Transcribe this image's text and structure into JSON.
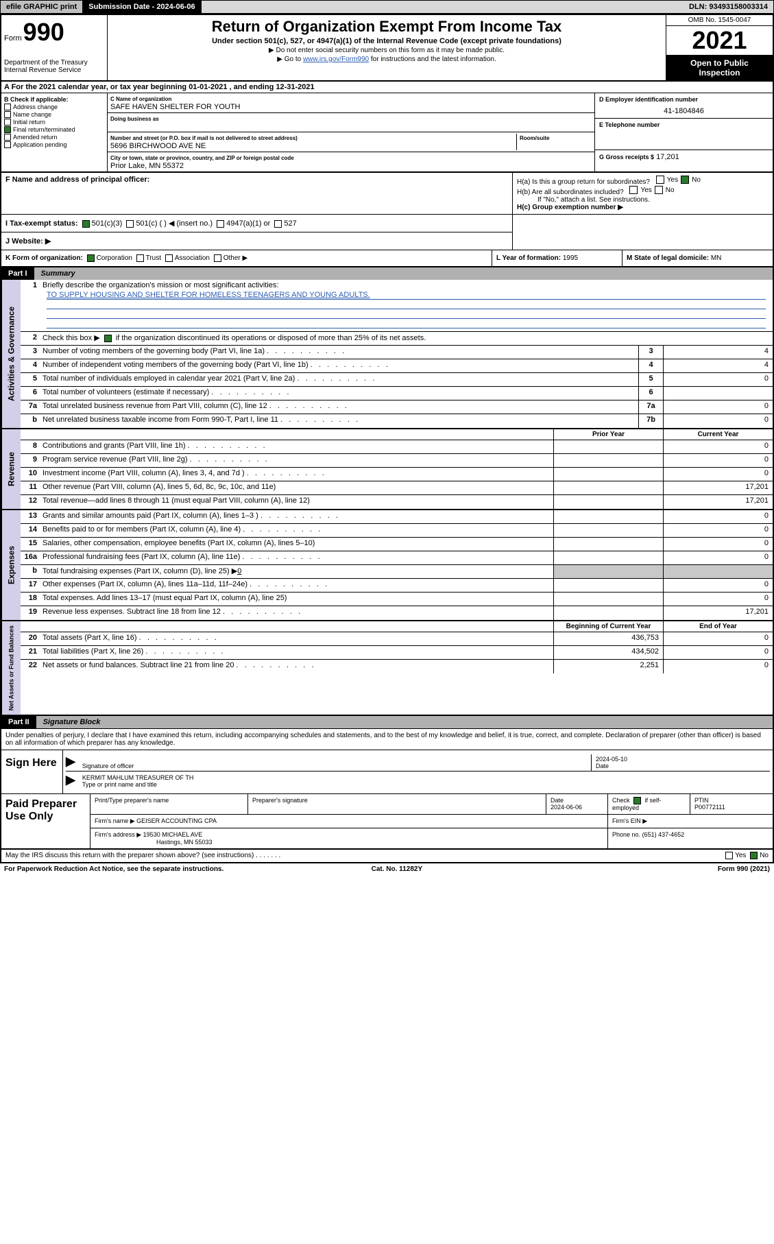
{
  "topbar": {
    "efile": "efile GRAPHIC print",
    "submission": "Submission Date - 2024-06-06",
    "dln": "DLN: 93493158003314"
  },
  "header": {
    "form_word": "Form",
    "form_num": "990",
    "dept": "Department of the Treasury\nInternal Revenue Service",
    "title": "Return of Organization Exempt From Income Tax",
    "subtitle": "Under section 501(c), 527, or 4947(a)(1) of the Internal Revenue Code (except private foundations)",
    "note1": "▶ Do not enter social security numbers on this form as it may be made public.",
    "note2_pre": "▶ Go to ",
    "note2_link": "www.irs.gov/Form990",
    "note2_post": " for instructions and the latest information.",
    "omb": "OMB No. 1545-0047",
    "year": "2021",
    "open": "Open to Public Inspection"
  },
  "line_a": "A For the 2021 calendar year, or tax year beginning 01-01-2021     , and ending 12-31-2021",
  "section_b": {
    "label": "B Check if applicable:",
    "items": [
      {
        "label": "Address change",
        "checked": false
      },
      {
        "label": "Name change",
        "checked": false
      },
      {
        "label": "Initial return",
        "checked": false
      },
      {
        "label": "Final return/terminated",
        "checked": true
      },
      {
        "label": "Amended return",
        "checked": false
      },
      {
        "label": "Application pending",
        "checked": false
      }
    ]
  },
  "section_c": {
    "name_label": "C Name of organization",
    "name": "SAFE HAVEN SHELTER FOR YOUTH",
    "dba_label": "Doing business as",
    "dba": "",
    "addr_label": "Number and street (or P.O. box if mail is not delivered to street address)",
    "room_label": "Room/suite",
    "addr": "5696 BIRCHWOOD AVE NE",
    "city_label": "City or town, state or province, country, and ZIP or foreign postal code",
    "city": "Prior Lake, MN   55372"
  },
  "section_d": {
    "label": "D Employer identification number",
    "val": "41-1804846"
  },
  "section_e": {
    "label": "E Telephone number",
    "val": ""
  },
  "section_g": {
    "label": "G Gross receipts $",
    "val": "17,201"
  },
  "section_f": {
    "label": "F  Name and address of principal officer:",
    "val": ""
  },
  "section_h": {
    "ha": "H(a)  Is this a group return for subordinates?",
    "hb": "H(b)  Are all subordinates included?",
    "hb_note": "If \"No,\" attach a list. See instructions.",
    "hc": "H(c)  Group exemption number ▶",
    "yes": "Yes",
    "no": "No"
  },
  "section_i": {
    "label": "I    Tax-exempt status:",
    "opts": [
      "501(c)(3)",
      "501(c) (  ) ◀ (insert no.)",
      "4947(a)(1) or",
      "527"
    ],
    "checked_idx": 0
  },
  "section_j": {
    "label": "J    Website: ▶",
    "val": ""
  },
  "section_k": {
    "label": "K Form of organization:",
    "opts": [
      "Corporation",
      "Trust",
      "Association",
      "Other ▶"
    ],
    "checked_idx": 0
  },
  "section_l": {
    "label": "L Year of formation:",
    "val": "1995"
  },
  "section_m": {
    "label": "M State of legal domicile:",
    "val": "MN"
  },
  "part1": {
    "num": "Part I",
    "title": "Summary"
  },
  "vlabels": {
    "gov": "Activities & Governance",
    "rev": "Revenue",
    "exp": "Expenses",
    "net": "Net Assets or Fund Balances"
  },
  "summary": {
    "l1": "Briefly describe the organization's mission or most significant activities:",
    "l1_val": "TO SUPPLY HOUSING AND SHELTER FOR HOMELESS TEENAGERS AND YOUNG ADULTS.",
    "l2": "Check this box ▶",
    "l2_post": " if the organization discontinued its operations or disposed of more than 25% of its net assets.",
    "l3": "Number of voting members of the governing body (Part VI, line 1a)",
    "l4": "Number of independent voting members of the governing body (Part VI, line 1b)",
    "l5": "Total number of individuals employed in calendar year 2021 (Part V, line 2a)",
    "l6": "Total number of volunteers (estimate if necessary)",
    "l7a": "Total unrelated business revenue from Part VIII, column (C), line 12",
    "l7b": "Net unrelated business taxable income from Form 990-T, Part I, line 11",
    "v3": "4",
    "v4": "4",
    "v5": "0",
    "v6": "",
    "v7a": "0",
    "v7b": "0",
    "prior": "Prior Year",
    "current": "Current Year",
    "l8": "Contributions and grants (Part VIII, line 1h)",
    "l9": "Program service revenue (Part VIII, line 2g)",
    "l10": "Investment income (Part VIII, column (A), lines 3, 4, and 7d )",
    "l11": "Other revenue (Part VIII, column (A), lines 5, 6d, 8c, 9c, 10c, and 11e)",
    "l12": "Total revenue—add lines 8 through 11 (must equal Part VIII, column (A), line 12)",
    "l13": "Grants and similar amounts paid (Part IX, column (A), lines 1–3 )",
    "l14": "Benefits paid to or for members (Part IX, column (A), line 4)",
    "l15": "Salaries, other compensation, employee benefits (Part IX, column (A), lines 5–10)",
    "l16a": "Professional fundraising fees (Part IX, column (A), line 11e)",
    "l16b_pre": "Total fundraising expenses (Part IX, column (D), line 25) ▶",
    "l16b_val": "0",
    "l17": "Other expenses (Part IX, column (A), lines 11a–11d, 11f–24e)",
    "l18": "Total expenses. Add lines 13–17 (must equal Part IX, column (A), line 25)",
    "l19": "Revenue less expenses. Subtract line 18 from line 12",
    "l20": "Total assets (Part X, line 16)",
    "l21": "Total liabilities (Part X, line 26)",
    "l22": "Net assets or fund balances. Subtract line 21 from line 20",
    "begin": "Beginning of Current Year",
    "end": "End of Year",
    "c8": "0",
    "c9": "0",
    "c10": "0",
    "c11": "17,201",
    "c12": "17,201",
    "c13": "0",
    "c14": "0",
    "c15": "0",
    "c16a": "0",
    "c17": "0",
    "c18": "0",
    "c19": "17,201",
    "p20": "436,753",
    "c20": "0",
    "p21": "434,502",
    "c21": "0",
    "p22": "2,251",
    "c22": "0"
  },
  "part2": {
    "num": "Part II",
    "title": "Signature Block"
  },
  "sig": {
    "penalties": "Under penalties of perjury, I declare that I have examined this return, including accompanying schedules and statements, and to the best of my knowledge and belief, it is true, correct, and complete. Declaration of preparer (other than officer) is based on all information of which preparer has any knowledge.",
    "sign_here": "Sign Here",
    "sig_officer": "Signature of officer",
    "date_label": "Date",
    "date": "2024-05-10",
    "name": "KERMIT MAHLUM  TREASURER OF TH",
    "name_label": "Type or print name and title",
    "paid": "Paid Preparer Use Only",
    "prep_name_label": "Print/Type preparer's name",
    "prep_sig_label": "Preparer's signature",
    "prep_date_label": "Date",
    "prep_date": "2024-06-06",
    "check_label": "Check",
    "check_post": "if self-employed",
    "ptin_label": "PTIN",
    "ptin": "P00772111",
    "firm_name_label": "Firm's name     ▶",
    "firm_name": "GEISER ACCOUNTING CPA",
    "firm_ein_label": "Firm's EIN ▶",
    "firm_addr_label": "Firm's address ▶",
    "firm_addr": "19530 MICHAEL AVE",
    "firm_city": "Hastings, MN   55033",
    "phone_label": "Phone no.",
    "phone": "(651) 437-4652",
    "irs_discuss": "May the IRS discuss this return with the preparer shown above? (see instructions)"
  },
  "footer": {
    "paperwork": "For Paperwork Reduction Act Notice, see the separate instructions.",
    "cat": "Cat. No. 11282Y",
    "form": "Form 990 (2021)"
  }
}
